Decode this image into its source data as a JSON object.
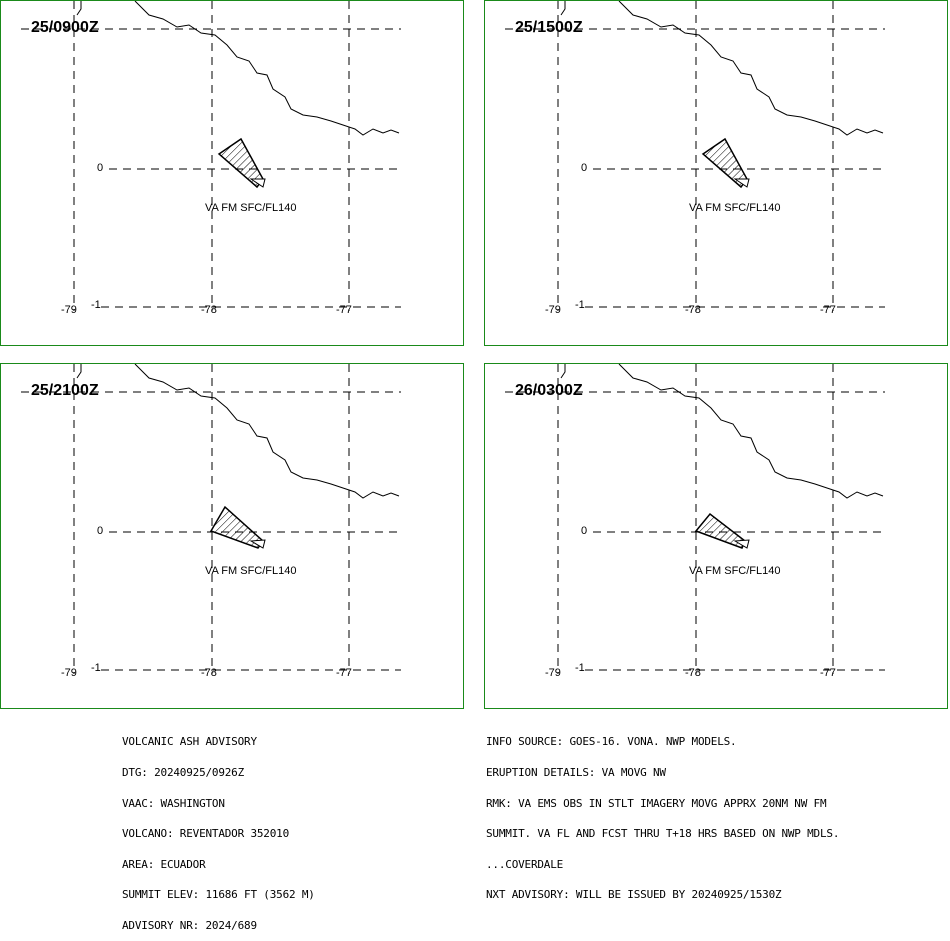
{
  "panels": [
    {
      "time": "25/0900Z",
      "layer": "VA FM SFC/FL140"
    },
    {
      "time": "25/1500Z",
      "layer": "VA FM SFC/FL140"
    },
    {
      "time": "25/2100Z",
      "layer": "VA FM SFC/FL140"
    },
    {
      "time": "26/0300Z",
      "layer": "VA FM SFC/FL140"
    }
  ],
  "axes": {
    "lat_labels": [
      "0",
      "-1"
    ],
    "lon_labels": [
      "-79",
      "-78",
      "-77"
    ]
  },
  "advisory_left": [
    "VOLCANIC ASH ADVISORY",
    "DTG: 20240925/0926Z",
    "VAAC: WASHINGTON",
    "VOLCANO: REVENTADOR 352010",
    "AREA: ECUADOR",
    "SUMMIT ELEV: 11686 FT (3562 M)",
    "ADVISORY NR: 2024/689"
  ],
  "advisory_right": [
    "INFO SOURCE: GOES-16. VONA. NWP MODELS.",
    "ERUPTION DETAILS: VA MOVG NW",
    "RMK: VA EMS OBS IN STLT IMAGERY MOVG APPRX 20NM NW FM",
    "SUMMIT. VA FL AND FCST THRU T+18 HRS BASED ON NWP MDLS.",
    "...COVERDALE",
    "NXT ADVISORY: WILL BE ISSUED BY 20240925/1530Z"
  ],
  "colors": {
    "frame": "#1a8a1a",
    "lines": "#000000"
  }
}
